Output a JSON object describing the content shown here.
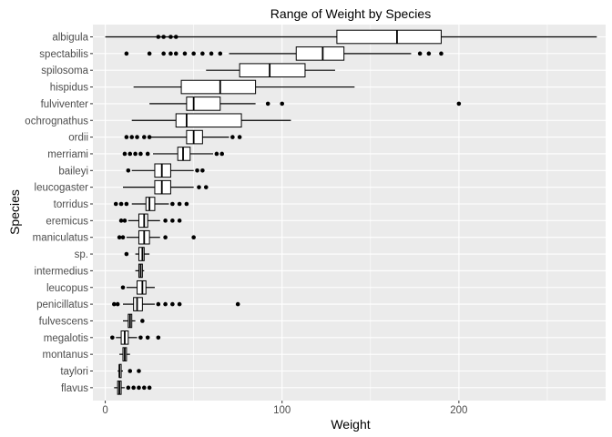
{
  "chart_data": {
    "type": "boxplot",
    "orientation": "horizontal",
    "title": "Range of Weight by Species",
    "xlabel": "Weight",
    "ylabel": "Species",
    "xlim": [
      -7,
      283
    ],
    "xticks": [
      0,
      100,
      200
    ],
    "grid": true,
    "legend": "none",
    "colors": {
      "panel_background": "#ebebeb",
      "grid_major": "#ffffff",
      "box_fill": "#ffffff",
      "box_outline": "#000000",
      "outlier": "#000000",
      "tick_label": "#4d4d4d"
    },
    "series": [
      {
        "category": "albigula",
        "whisker_low": 0,
        "q1": 131,
        "median": 165,
        "q3": 190,
        "whisker_high": 278,
        "outliers": [
          30,
          33,
          37,
          40
        ]
      },
      {
        "category": "spectabilis",
        "whisker_low": 70,
        "q1": 108,
        "median": 123,
        "q3": 135,
        "whisker_high": 173,
        "outliers": [
          12,
          25,
          33,
          37,
          40,
          45,
          50,
          55,
          60,
          65,
          178,
          183,
          190
        ]
      },
      {
        "category": "spilosoma",
        "whisker_low": 57,
        "q1": 76,
        "median": 93,
        "q3": 113,
        "whisker_high": 130,
        "outliers": []
      },
      {
        "category": "hispidus",
        "whisker_low": 16,
        "q1": 43,
        "median": 65,
        "q3": 85,
        "whisker_high": 141,
        "outliers": []
      },
      {
        "category": "fulviventer",
        "whisker_low": 25,
        "q1": 46,
        "median": 50,
        "q3": 65,
        "whisker_high": 85,
        "outliers": [
          92,
          100,
          200
        ]
      },
      {
        "category": "ochrognathus",
        "whisker_low": 15,
        "q1": 40,
        "median": 46,
        "q3": 77,
        "whisker_high": 105,
        "outliers": []
      },
      {
        "category": "ordii",
        "whisker_low": 26,
        "q1": 46,
        "median": 50,
        "q3": 55,
        "whisker_high": 70,
        "outliers": [
          12,
          15,
          18,
          22,
          25,
          72,
          76
        ]
      },
      {
        "category": "merriami",
        "whisker_low": 27,
        "q1": 41,
        "median": 44,
        "q3": 48,
        "whisker_high": 61,
        "outliers": [
          11,
          14,
          17,
          20,
          24,
          63,
          66
        ]
      },
      {
        "category": "baileyi",
        "whisker_low": 15,
        "q1": 28,
        "median": 32,
        "q3": 37,
        "whisker_high": 50,
        "outliers": [
          13,
          52,
          55
        ]
      },
      {
        "category": "leucogaster",
        "whisker_low": 10,
        "q1": 28,
        "median": 32,
        "q3": 37,
        "whisker_high": 50,
        "outliers": [
          53,
          57
        ]
      },
      {
        "category": "torridus",
        "whisker_low": 15,
        "q1": 23,
        "median": 25,
        "q3": 28,
        "whisker_high": 36,
        "outliers": [
          6,
          9,
          12,
          38,
          42,
          46
        ]
      },
      {
        "category": "eremicus",
        "whisker_low": 13,
        "q1": 19,
        "median": 22,
        "q3": 24,
        "whisker_high": 31,
        "outliers": [
          9,
          11,
          34,
          38,
          42
        ]
      },
      {
        "category": "maniculatus",
        "whisker_low": 12,
        "q1": 19,
        "median": 22,
        "q3": 25,
        "whisker_high": 31,
        "outliers": [
          8,
          10,
          34,
          50
        ]
      },
      {
        "category": "sp.",
        "whisker_low": 17,
        "q1": 19,
        "median": 21,
        "q3": 22,
        "whisker_high": 25,
        "outliers": [
          12
        ]
      },
      {
        "category": "intermedius",
        "whisker_low": 17,
        "q1": 19,
        "median": 20,
        "q3": 21,
        "whisker_high": 22,
        "outliers": []
      },
      {
        "category": "leucopus",
        "whisker_low": 12,
        "q1": 18,
        "median": 21,
        "q3": 23,
        "whisker_high": 28,
        "outliers": [
          10
        ]
      },
      {
        "category": "penicillatus",
        "whisker_low": 10,
        "q1": 16,
        "median": 18,
        "q3": 21,
        "whisker_high": 28,
        "outliers": [
          5,
          7,
          30,
          34,
          38,
          42,
          75
        ]
      },
      {
        "category": "fulvescens",
        "whisker_low": 10,
        "q1": 13,
        "median": 14,
        "q3": 15,
        "whisker_high": 17,
        "outliers": [
          21
        ]
      },
      {
        "category": "megalotis",
        "whisker_low": 6,
        "q1": 9,
        "median": 11,
        "q3": 13,
        "whisker_high": 18,
        "outliers": [
          4,
          20,
          24,
          30
        ]
      },
      {
        "category": "montanus",
        "whisker_low": 8,
        "q1": 10,
        "median": 11,
        "q3": 12,
        "whisker_high": 14,
        "outliers": []
      },
      {
        "category": "taylori",
        "whisker_low": 7,
        "q1": 8,
        "median": 8,
        "q3": 9,
        "whisker_high": 10,
        "outliers": [
          14,
          19
        ]
      },
      {
        "category": "flavus",
        "whisker_low": 5,
        "q1": 7,
        "median": 8,
        "q3": 9,
        "whisker_high": 11,
        "outliers": [
          13,
          16,
          19,
          22,
          25
        ]
      }
    ]
  }
}
